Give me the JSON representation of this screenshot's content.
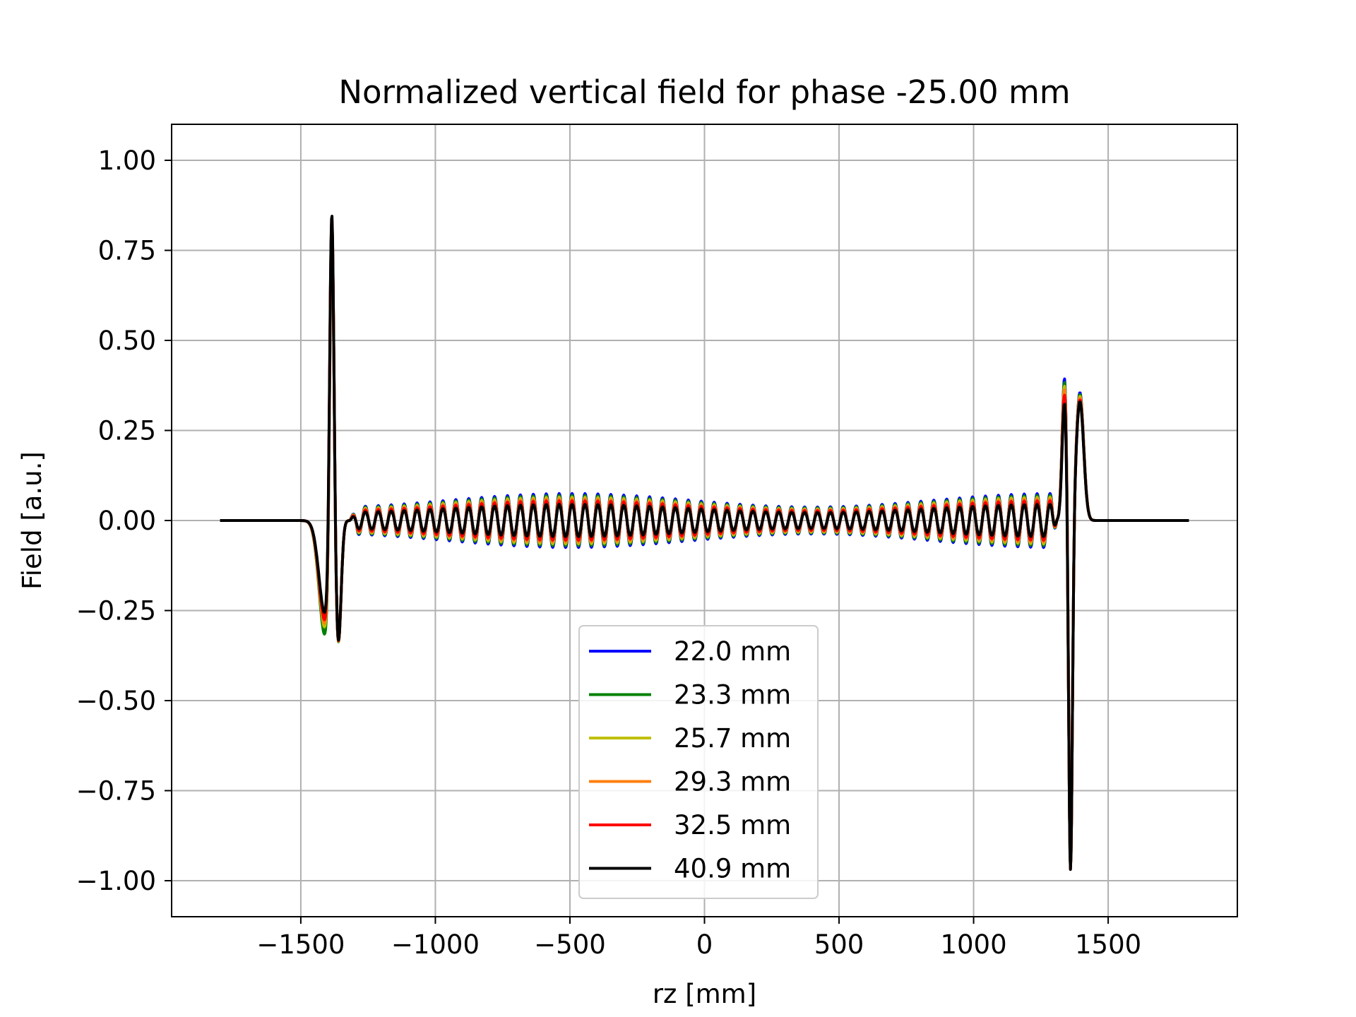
{
  "chart_data": {
    "type": "line",
    "title": "Normalized vertical field for phase -25.00 mm",
    "xlabel": "rz [mm]",
    "ylabel": "Field [a.u.]",
    "xlim": [
      -1980,
      1980
    ],
    "ylim": [
      -1.1,
      1.1
    ],
    "xticks": [
      -1500,
      -1000,
      -500,
      0,
      500,
      1000,
      1500
    ],
    "xtick_labels": [
      "−1500",
      "−1000",
      "−500",
      "0",
      "500",
      "1000",
      "1500"
    ],
    "yticks": [
      1.0,
      0.75,
      0.5,
      0.25,
      0.0,
      -0.25,
      -0.5,
      -0.75,
      -1.0
    ],
    "ytick_labels": [
      "1.00",
      "0.75",
      "0.50",
      "0.25",
      "0.00",
      "−0.25",
      "−0.50",
      "−0.75",
      "−1.00"
    ],
    "grid": true,
    "legend_position": "lower-center",
    "x_range_data": [
      -1800,
      1800
    ],
    "series": [
      {
        "name": "22.0 mm",
        "color": "#0000ff",
        "osc_amplitude": 0.075,
        "end_peak_1": 0.4,
        "end_peak_2": 0.355,
        "first_dip": -0.31
      },
      {
        "name": "23.3 mm",
        "color": "#008000",
        "osc_amplitude": 0.07,
        "end_peak_1": 0.39,
        "end_peak_2": 0.35,
        "first_dip": -0.32
      },
      {
        "name": "25.7 mm",
        "color": "#bfbf00",
        "osc_amplitude": 0.065,
        "end_peak_1": 0.38,
        "end_peak_2": 0.345,
        "first_dip": -0.3
      },
      {
        "name": "29.3 mm",
        "color": "#ff7f0e",
        "osc_amplitude": 0.06,
        "end_peak_1": 0.37,
        "end_peak_2": 0.34,
        "first_dip": -0.29
      },
      {
        "name": "32.5 mm",
        "color": "#ff0000",
        "osc_amplitude": 0.055,
        "end_peak_1": 0.355,
        "end_peak_2": 0.335,
        "first_dip": -0.28
      },
      {
        "name": "40.9 mm",
        "color": "#000000",
        "osc_amplitude": 0.045,
        "end_peak_1": 0.33,
        "end_peak_2": 0.33,
        "first_dip": -0.26
      }
    ],
    "features": {
      "main_peak": {
        "x": -1385,
        "y": 1.0
      },
      "second_dip": {
        "x": -1360,
        "y": -0.32
      },
      "end_dip": {
        "x": 1360,
        "y": -1.0
      },
      "period_mm": 48
    }
  }
}
